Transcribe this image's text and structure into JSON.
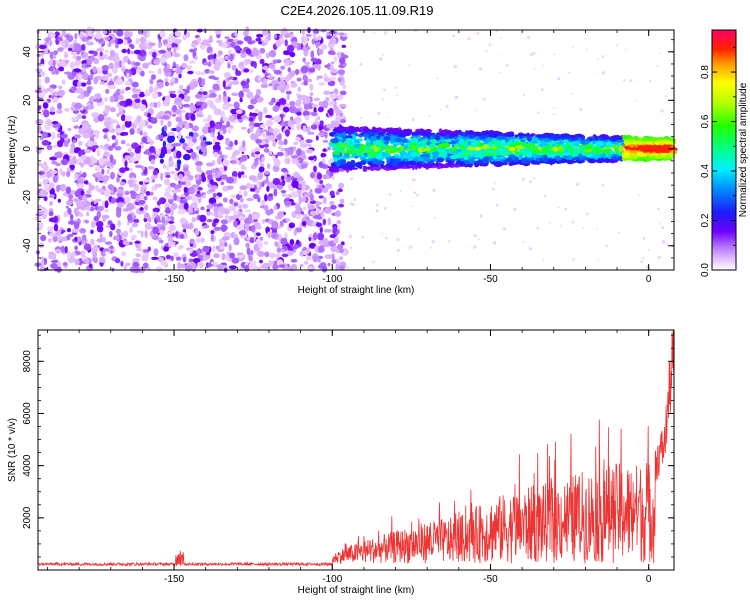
{
  "title": "C2E4.2026.105.11.09.R19",
  "colors": {
    "snr_line": "#ee3333",
    "axes": "#000000"
  },
  "chart_data": [
    {
      "type": "heatmap",
      "xlabel": "Height of straight line (km)",
      "ylabel": "Frequency (Hz)",
      "xlim": [
        -193,
        8
      ],
      "ylim": [
        -50,
        49
      ],
      "xticks": [
        -150,
        -100,
        -50,
        0
      ],
      "yticks": [
        -40,
        -20,
        0,
        20,
        40
      ],
      "colorbar": {
        "label": "Normalized spectral amplitude",
        "range": [
          0,
          0.97
        ],
        "ticks": [
          "0.0",
          "0.2",
          "0.4",
          "0.6",
          "0.8"
        ],
        "colormap": "hsv-rainbow-magenta-to-red"
      },
      "features": [
        {
          "name": "noise",
          "x_range": [
            -193,
            -96
          ],
          "freq_range": [
            -50,
            49
          ],
          "amplitude": 0.05
        },
        {
          "name": "signal-band",
          "x_range": [
            -100,
            8
          ],
          "center_freq": 0,
          "amplitude_range": [
            0.1,
            0.95
          ]
        }
      ]
    },
    {
      "type": "line",
      "xlabel": "Height of straight line (km)",
      "ylabel": "SNR (10 * v/v)",
      "xlim": [
        -193,
        8
      ],
      "ylim": [
        0,
        9200
      ],
      "xticks": [
        -150,
        -100,
        -50,
        0
      ],
      "yticks": [
        2000,
        4000,
        6000,
        8000
      ],
      "envelope": {
        "x": [
          -193,
          -150,
          -148,
          -146,
          -101,
          -98,
          -90,
          -80,
          -70,
          -60,
          -50,
          -40,
          -30,
          -20,
          -10,
          -2,
          2,
          5,
          7,
          8
        ],
        "y": [
          200,
          200,
          750,
          200,
          200,
          600,
          1000,
          1400,
          1800,
          2000,
          2800,
          3200,
          3500,
          4000,
          4300,
          4300,
          4400,
          5200,
          8000,
          9000
        ]
      }
    }
  ]
}
